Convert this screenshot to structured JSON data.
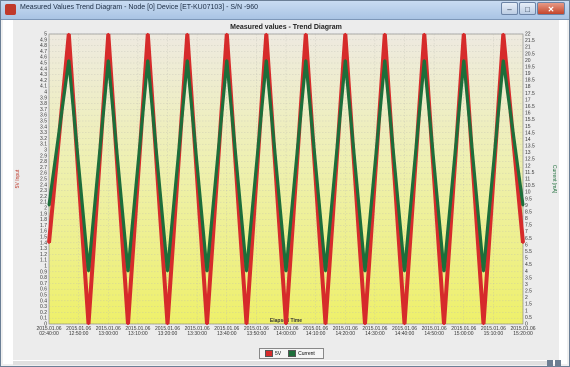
{
  "window": {
    "title": "Measured Values Trend Diagram - Node [0] Device [ET-KU07103] - S/N -960"
  },
  "chart_data": {
    "type": "line",
    "title": "Measured values - Trend Diagram",
    "xlabel": "Elapsed Time",
    "ylabel_left": "5V Input",
    "ylabel_right": "Current [mA]",
    "y_left": {
      "min": 0,
      "max": 5,
      "ticks": [
        "0",
        "0.1",
        "0.2",
        "0.3",
        "0.4",
        "0.5",
        "0.6",
        "0.7",
        "0.8",
        "0.9",
        "1",
        "1.1",
        "1.2",
        "1.3",
        "1.4",
        "1.5",
        "1.6",
        "1.7",
        "1.8",
        "1.9",
        "2",
        "2.1",
        "2.2",
        "2.3",
        "2.4",
        "2.5",
        "2.6",
        "2.7",
        "2.8",
        "2.9",
        "3",
        "3.1",
        "3.2",
        "3.3",
        "3.4",
        "3.5",
        "3.6",
        "3.7",
        "3.8",
        "3.9",
        "4",
        "4.1",
        "4.2",
        "4.3",
        "4.4",
        "4.5",
        "4.6",
        "4.7",
        "4.8",
        "4.9",
        "5"
      ]
    },
    "y_right": {
      "min": 0,
      "max": 22,
      "ticks": [
        "0",
        "0.5",
        "1",
        "1.5",
        "2",
        "2.5",
        "3",
        "3.5",
        "4",
        "4.5",
        "5",
        "5.5",
        "6",
        "6.5",
        "7",
        "7.5",
        "8",
        "8.5",
        "9",
        "9.5",
        "10",
        "10.5",
        "11",
        "11.5",
        "12",
        "12.5",
        "13",
        "13.5",
        "14",
        "14.5",
        "15",
        "15.5",
        "16",
        "16.5",
        "17",
        "17.5",
        "18",
        "18.5",
        "19",
        "19.5",
        "20",
        "20.5",
        "21",
        "21.5",
        "22"
      ]
    },
    "x_ticks": [
      [
        "2015.01.06",
        "02:40:00"
      ],
      [
        "2015.01.06",
        "12:50:00"
      ],
      [
        "2015.01.06",
        "13:00:00"
      ],
      [
        "2015.01.06",
        "13:10:00"
      ],
      [
        "2015.01.06",
        "13:20:00"
      ],
      [
        "2015.01.06",
        "13:30:00"
      ],
      [
        "2015.01.06",
        "13:40:00"
      ],
      [
        "2015.01.06",
        "13:50:00"
      ],
      [
        "2015.01.06",
        "14:00:00"
      ],
      [
        "2015.01.06",
        "14:10:00"
      ],
      [
        "2015.01.06",
        "14:20:00"
      ],
      [
        "2015.01.06",
        "14:30:00"
      ],
      [
        "2015.01.06",
        "14:40:00"
      ],
      [
        "2015.01.06",
        "14:50:00"
      ],
      [
        "2015.01.06",
        "15:00:00"
      ],
      [
        "2015.01.06",
        "15:10:00"
      ],
      [
        "2015.01.06",
        "15:20:00"
      ]
    ],
    "series": [
      {
        "name": "5V",
        "color": "#d62b2b",
        "axis": "left",
        "x": [
          0,
          1,
          2,
          3,
          4,
          5,
          6,
          7,
          8,
          9,
          10,
          11,
          12,
          13,
          14,
          15,
          16,
          17,
          18,
          19,
          20,
          21,
          22,
          23,
          24
        ],
        "y": [
          1.4,
          5,
          0,
          5,
          0,
          5,
          0,
          5,
          0,
          5,
          0,
          5,
          0,
          5,
          0,
          5,
          0,
          5,
          0,
          5,
          0,
          5,
          0,
          5,
          1.4
        ]
      },
      {
        "name": "Current",
        "color": "#1d6e3a",
        "axis": "right",
        "x": [
          0,
          1,
          2,
          3,
          4,
          5,
          6,
          7,
          8,
          9,
          10,
          11,
          12,
          13,
          14,
          15,
          16,
          17,
          18,
          19,
          20,
          21,
          22,
          23,
          24
        ],
        "y": [
          9,
          20,
          4,
          20,
          4,
          20,
          4,
          20,
          4,
          20,
          4,
          20,
          4,
          20,
          4,
          20,
          4,
          20,
          4,
          20,
          4,
          20,
          4,
          20,
          9
        ]
      }
    ],
    "grid": true,
    "legend": "bottom-center"
  },
  "legend": {
    "items": [
      {
        "label": "5V",
        "color": "#d62b2b"
      },
      {
        "label": "Current",
        "color": "#1d6e3a"
      }
    ]
  },
  "icons": {
    "app": "app-icon",
    "minimize": "minimize-icon",
    "maximize": "maximize-icon",
    "close": "close-icon"
  }
}
